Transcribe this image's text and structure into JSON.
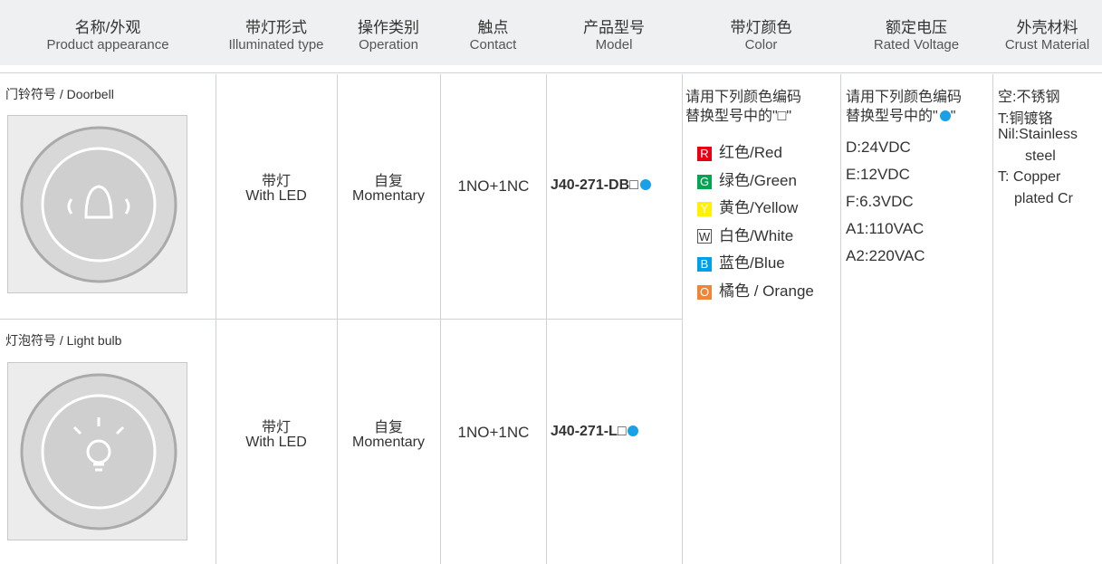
{
  "table": {
    "headers": [
      {
        "zh": "名称/外观",
        "en": "Product appearance"
      },
      {
        "zh": "带灯形式",
        "en": "Illuminated type"
      },
      {
        "zh": "操作类别",
        "en": "Operation"
      },
      {
        "zh": "触点",
        "en": "Contact"
      },
      {
        "zh": "产品型号",
        "en": "Model"
      },
      {
        "zh": "带灯颜色",
        "en": "Color"
      },
      {
        "zh": "额定电压",
        "en": "Rated Voltage"
      },
      {
        "zh": "外壳材料",
        "en": "Crust Material"
      }
    ],
    "rows": [
      {
        "name": "门铃符号 / Doorbell",
        "type_zh": "带灯",
        "type_en": "With LED",
        "op_zh": "自复",
        "op_en": "Momentary",
        "contact": "1NO+1NC",
        "model": "J40-271-DB□"
      },
      {
        "name": "灯泡符号 / Light bulb",
        "type_zh": "带灯",
        "type_en": "With LED",
        "op_zh": "自复",
        "op_en": "Momentary",
        "contact": "1NO+1NC",
        "model": "J40-271-L□"
      }
    ],
    "color": {
      "note": [
        "请用下列颜色编码",
        "替换型号中的\"□\""
      ],
      "options": [
        {
          "code": "R",
          "label": "红色/Red",
          "color": "#e60012"
        },
        {
          "code": "G",
          "label": "绿色/Green",
          "color": "#00a651"
        },
        {
          "code": "Y",
          "label": "黄色/Yellow",
          "color": "#fff100"
        },
        {
          "code": "W",
          "label": "白色/White",
          "color": "#ffffff"
        },
        {
          "code": "B",
          "label": "蓝色/Blue",
          "color": "#00a0e9"
        },
        {
          "code": "O",
          "label": "橘色 / Orange",
          "color": "#f08437"
        }
      ]
    },
    "voltage": {
      "note": [
        "请用下列颜色编码",
        "替换型号中的\""
      ],
      "note_close": "\"",
      "options": [
        "D:24VDC",
        "E:12VDC",
        "F:6.3VDC",
        "A1:110VAC",
        "A2:220VAC"
      ]
    },
    "crust": [
      "空:不锈钢",
      "T:铜镀铬",
      "Nil:Stainless",
      "steel",
      "T: Copper",
      "plated Cr"
    ]
  }
}
